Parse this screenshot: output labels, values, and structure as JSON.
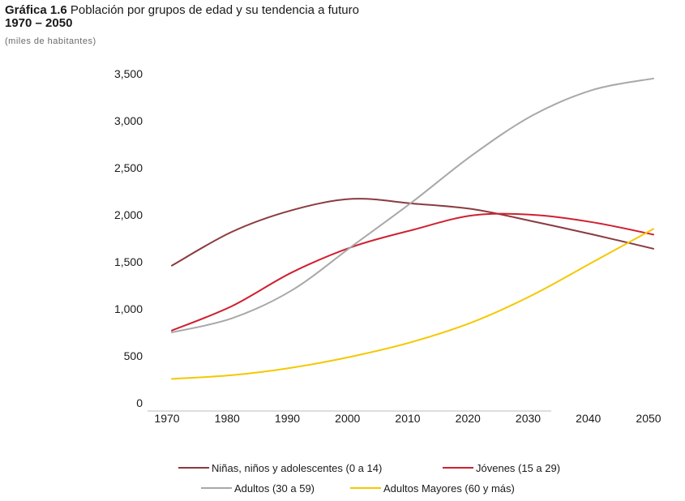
{
  "header": {
    "label": "Gráfica 1.6",
    "title": "Población por grupos de edad y su tendencia a futuro",
    "years": "1970 – 2050",
    "units": "(miles de habitantes)"
  },
  "chart_data": {
    "type": "line",
    "title": "Gráfica 1.6 Población por grupos de edad y su tendencia a futuro",
    "subtitle": "1970 – 2050",
    "ylabel": "(miles de habitantes)",
    "xlabel": "",
    "x": [
      1970,
      1980,
      1990,
      2000,
      2010,
      2020,
      2030,
      2040,
      2050
    ],
    "ylim": [
      0,
      3500
    ],
    "yticks": [
      0,
      500,
      1000,
      1500,
      2000,
      2500,
      3000,
      3500
    ],
    "ytick_labels": [
      "0",
      "500",
      "1,000",
      "1,500",
      "2,000",
      "2,500",
      "3,000",
      "3,500"
    ],
    "grid": false,
    "legend_position": "bottom",
    "series": [
      {
        "name": "Niñas, niños y adolescentes (0 a 14)",
        "color": "#8b3a3f",
        "values": [
          1460,
          1820,
          2050,
          2170,
          2120,
          2060,
          1930,
          1790,
          1640
        ]
      },
      {
        "name": "Jóvenes (15 a 29)",
        "color": "#cf2030",
        "values": [
          770,
          1030,
          1390,
          1660,
          1840,
          1995,
          2000,
          1920,
          1790
        ]
      },
      {
        "name": "Adultos (30 a 59)",
        "color": "#a8a8a8",
        "values": [
          750,
          900,
          1200,
          1670,
          2140,
          2640,
          3060,
          3330,
          3450
        ]
      },
      {
        "name": "Adultos Mayores (60 y más)",
        "color": "#f5c800",
        "values": [
          255,
          295,
          375,
          495,
          650,
          860,
          1150,
          1500,
          1850
        ]
      }
    ]
  }
}
